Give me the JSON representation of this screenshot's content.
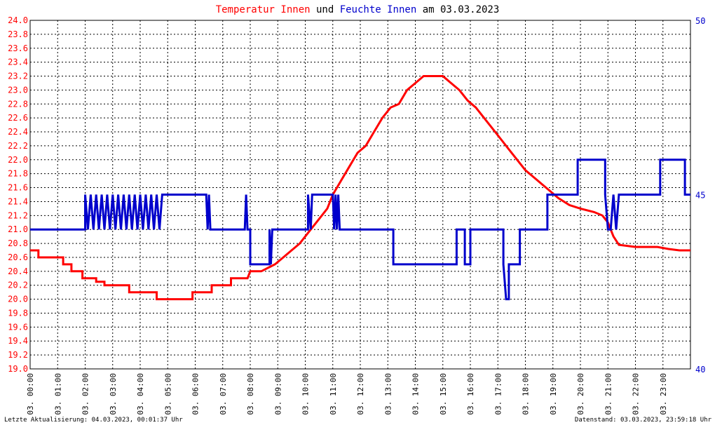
{
  "title": {
    "part1": "Temperatur Innen",
    "part2": " und ",
    "part3": "Feuchte Innen",
    "part4": " am 03.03.2023",
    "color1": "#ff0000",
    "color3": "#0000cc"
  },
  "footer": {
    "left": "Letzte Aktualisierung: 04.03.2023, 00:01:37 Uhr",
    "right": "Datenstand: 03.03.2023, 23:59:18 Uhr"
  },
  "chart_data": {
    "type": "line",
    "grid": true,
    "x_range_hours": [
      0,
      24
    ],
    "x_tick_labels": [
      "03. 00:00",
      "03. 01:00",
      "03. 02:00",
      "03. 03:00",
      "03. 04:00",
      "03. 05:00",
      "03. 06:00",
      "03. 07:00",
      "03. 08:00",
      "03. 09:00",
      "03. 10:00",
      "03. 11:00",
      "03. 12:00",
      "03. 13:00",
      "03. 14:00",
      "03. 15:00",
      "03. 16:00",
      "03. 17:00",
      "03. 18:00",
      "03. 19:00",
      "03. 20:00",
      "03. 21:00",
      "03. 22:00",
      "03. 23:00"
    ],
    "y_left": {
      "range": [
        19.0,
        24.0
      ],
      "ticks": [
        "19.0",
        "19.2",
        "19.4",
        "19.6",
        "19.8",
        "20.0",
        "20.2",
        "20.4",
        "20.6",
        "20.8",
        "21.0",
        "21.2",
        "21.4",
        "21.6",
        "21.8",
        "22.0",
        "22.2",
        "22.4",
        "22.6",
        "22.8",
        "23.0",
        "23.2",
        "23.4",
        "23.6",
        "23.8",
        "24.0"
      ],
      "color": "#ff0000"
    },
    "y_right": {
      "range": [
        40,
        50
      ],
      "ticks": [
        "40",
        "45",
        "50"
      ],
      "color": "#0000cc"
    },
    "series": [
      {
        "name": "Temperatur Innen",
        "axis": "left",
        "color": "#ff0000",
        "points": [
          [
            0.0,
            20.7
          ],
          [
            0.3,
            20.7
          ],
          [
            0.3,
            20.6
          ],
          [
            1.2,
            20.6
          ],
          [
            1.2,
            20.5
          ],
          [
            1.5,
            20.5
          ],
          [
            1.5,
            20.4
          ],
          [
            1.9,
            20.4
          ],
          [
            1.9,
            20.3
          ],
          [
            2.4,
            20.3
          ],
          [
            2.4,
            20.25
          ],
          [
            2.7,
            20.25
          ],
          [
            2.7,
            20.2
          ],
          [
            3.6,
            20.2
          ],
          [
            3.6,
            20.1
          ],
          [
            4.6,
            20.1
          ],
          [
            4.6,
            20.0
          ],
          [
            5.9,
            20.0
          ],
          [
            5.9,
            20.1
          ],
          [
            6.6,
            20.1
          ],
          [
            6.6,
            20.2
          ],
          [
            7.3,
            20.2
          ],
          [
            7.3,
            20.3
          ],
          [
            7.9,
            20.3
          ],
          [
            8.0,
            20.4
          ],
          [
            8.4,
            20.4
          ],
          [
            8.9,
            20.5
          ],
          [
            9.2,
            20.6
          ],
          [
            9.5,
            20.7
          ],
          [
            9.8,
            20.8
          ],
          [
            10.0,
            20.9
          ],
          [
            10.2,
            21.0
          ],
          [
            10.4,
            21.1
          ],
          [
            10.6,
            21.2
          ],
          [
            10.8,
            21.3
          ],
          [
            11.0,
            21.5
          ],
          [
            11.3,
            21.7
          ],
          [
            11.6,
            21.9
          ],
          [
            11.9,
            22.1
          ],
          [
            12.2,
            22.2
          ],
          [
            12.5,
            22.4
          ],
          [
            12.8,
            22.6
          ],
          [
            13.1,
            22.75
          ],
          [
            13.4,
            22.8
          ],
          [
            13.7,
            23.0
          ],
          [
            14.0,
            23.1
          ],
          [
            14.3,
            23.2
          ],
          [
            15.0,
            23.2
          ],
          [
            15.3,
            23.1
          ],
          [
            15.6,
            23.0
          ],
          [
            15.9,
            22.85
          ],
          [
            16.2,
            22.75
          ],
          [
            16.5,
            22.6
          ],
          [
            16.8,
            22.45
          ],
          [
            17.1,
            22.3
          ],
          [
            17.4,
            22.15
          ],
          [
            17.7,
            22.0
          ],
          [
            18.0,
            21.85
          ],
          [
            18.3,
            21.75
          ],
          [
            18.6,
            21.65
          ],
          [
            18.9,
            21.55
          ],
          [
            19.2,
            21.45
          ],
          [
            19.6,
            21.35
          ],
          [
            20.0,
            21.3
          ],
          [
            20.5,
            21.25
          ],
          [
            20.8,
            21.2
          ],
          [
            21.0,
            21.1
          ],
          [
            21.1,
            21.0
          ],
          [
            21.2,
            20.9
          ],
          [
            21.4,
            20.78
          ],
          [
            22.0,
            20.75
          ],
          [
            22.5,
            20.75
          ],
          [
            22.8,
            20.75
          ],
          [
            23.2,
            20.72
          ],
          [
            23.6,
            20.7
          ],
          [
            24.0,
            20.7
          ]
        ]
      },
      {
        "name": "Feuchte Innen",
        "axis": "right",
        "color": "#0000cc",
        "points": [
          [
            0.0,
            44
          ],
          [
            2.0,
            44
          ],
          [
            2.0,
            45
          ],
          [
            2.1,
            44
          ],
          [
            2.2,
            45
          ],
          [
            2.3,
            44
          ],
          [
            2.4,
            45
          ],
          [
            2.5,
            44
          ],
          [
            2.6,
            45
          ],
          [
            2.7,
            44
          ],
          [
            2.8,
            45
          ],
          [
            2.9,
            44
          ],
          [
            3.0,
            45
          ],
          [
            3.1,
            44
          ],
          [
            3.2,
            45
          ],
          [
            3.3,
            44
          ],
          [
            3.4,
            45
          ],
          [
            3.5,
            44
          ],
          [
            3.6,
            45
          ],
          [
            3.7,
            44
          ],
          [
            3.8,
            45
          ],
          [
            3.9,
            44
          ],
          [
            4.0,
            45
          ],
          [
            4.1,
            44
          ],
          [
            4.2,
            45
          ],
          [
            4.3,
            44
          ],
          [
            4.4,
            45
          ],
          [
            4.5,
            44
          ],
          [
            4.6,
            45
          ],
          [
            4.7,
            44
          ],
          [
            4.8,
            45
          ],
          [
            6.4,
            45
          ],
          [
            6.45,
            44
          ],
          [
            6.5,
            45
          ],
          [
            6.55,
            44
          ],
          [
            7.8,
            44
          ],
          [
            7.85,
            45
          ],
          [
            7.9,
            44
          ],
          [
            8.0,
            44
          ],
          [
            8.0,
            43
          ],
          [
            8.7,
            43
          ],
          [
            8.7,
            44
          ],
          [
            8.75,
            43
          ],
          [
            8.8,
            44
          ],
          [
            10.1,
            44
          ],
          [
            10.1,
            45
          ],
          [
            10.2,
            44
          ],
          [
            10.25,
            45
          ],
          [
            11.0,
            45
          ],
          [
            11.05,
            44
          ],
          [
            11.1,
            45
          ],
          [
            11.15,
            44
          ],
          [
            11.2,
            45
          ],
          [
            11.25,
            44
          ],
          [
            13.2,
            44
          ],
          [
            13.2,
            43
          ],
          [
            15.5,
            43
          ],
          [
            15.5,
            44
          ],
          [
            15.8,
            44
          ],
          [
            15.8,
            43
          ],
          [
            16.0,
            43
          ],
          [
            16.0,
            44
          ],
          [
            17.2,
            44
          ],
          [
            17.2,
            43
          ],
          [
            17.3,
            42
          ],
          [
            17.4,
            42
          ],
          [
            17.4,
            43
          ],
          [
            17.8,
            43
          ],
          [
            17.8,
            44
          ],
          [
            18.8,
            44
          ],
          [
            18.8,
            45
          ],
          [
            19.9,
            45
          ],
          [
            19.9,
            46
          ],
          [
            20.9,
            46
          ],
          [
            20.9,
            45
          ],
          [
            21.0,
            44
          ],
          [
            21.1,
            44
          ],
          [
            21.2,
            45
          ],
          [
            21.3,
            44
          ],
          [
            21.4,
            45
          ],
          [
            22.9,
            45
          ],
          [
            22.9,
            46
          ],
          [
            23.8,
            46
          ],
          [
            23.8,
            45
          ],
          [
            24.0,
            45
          ]
        ]
      }
    ]
  }
}
